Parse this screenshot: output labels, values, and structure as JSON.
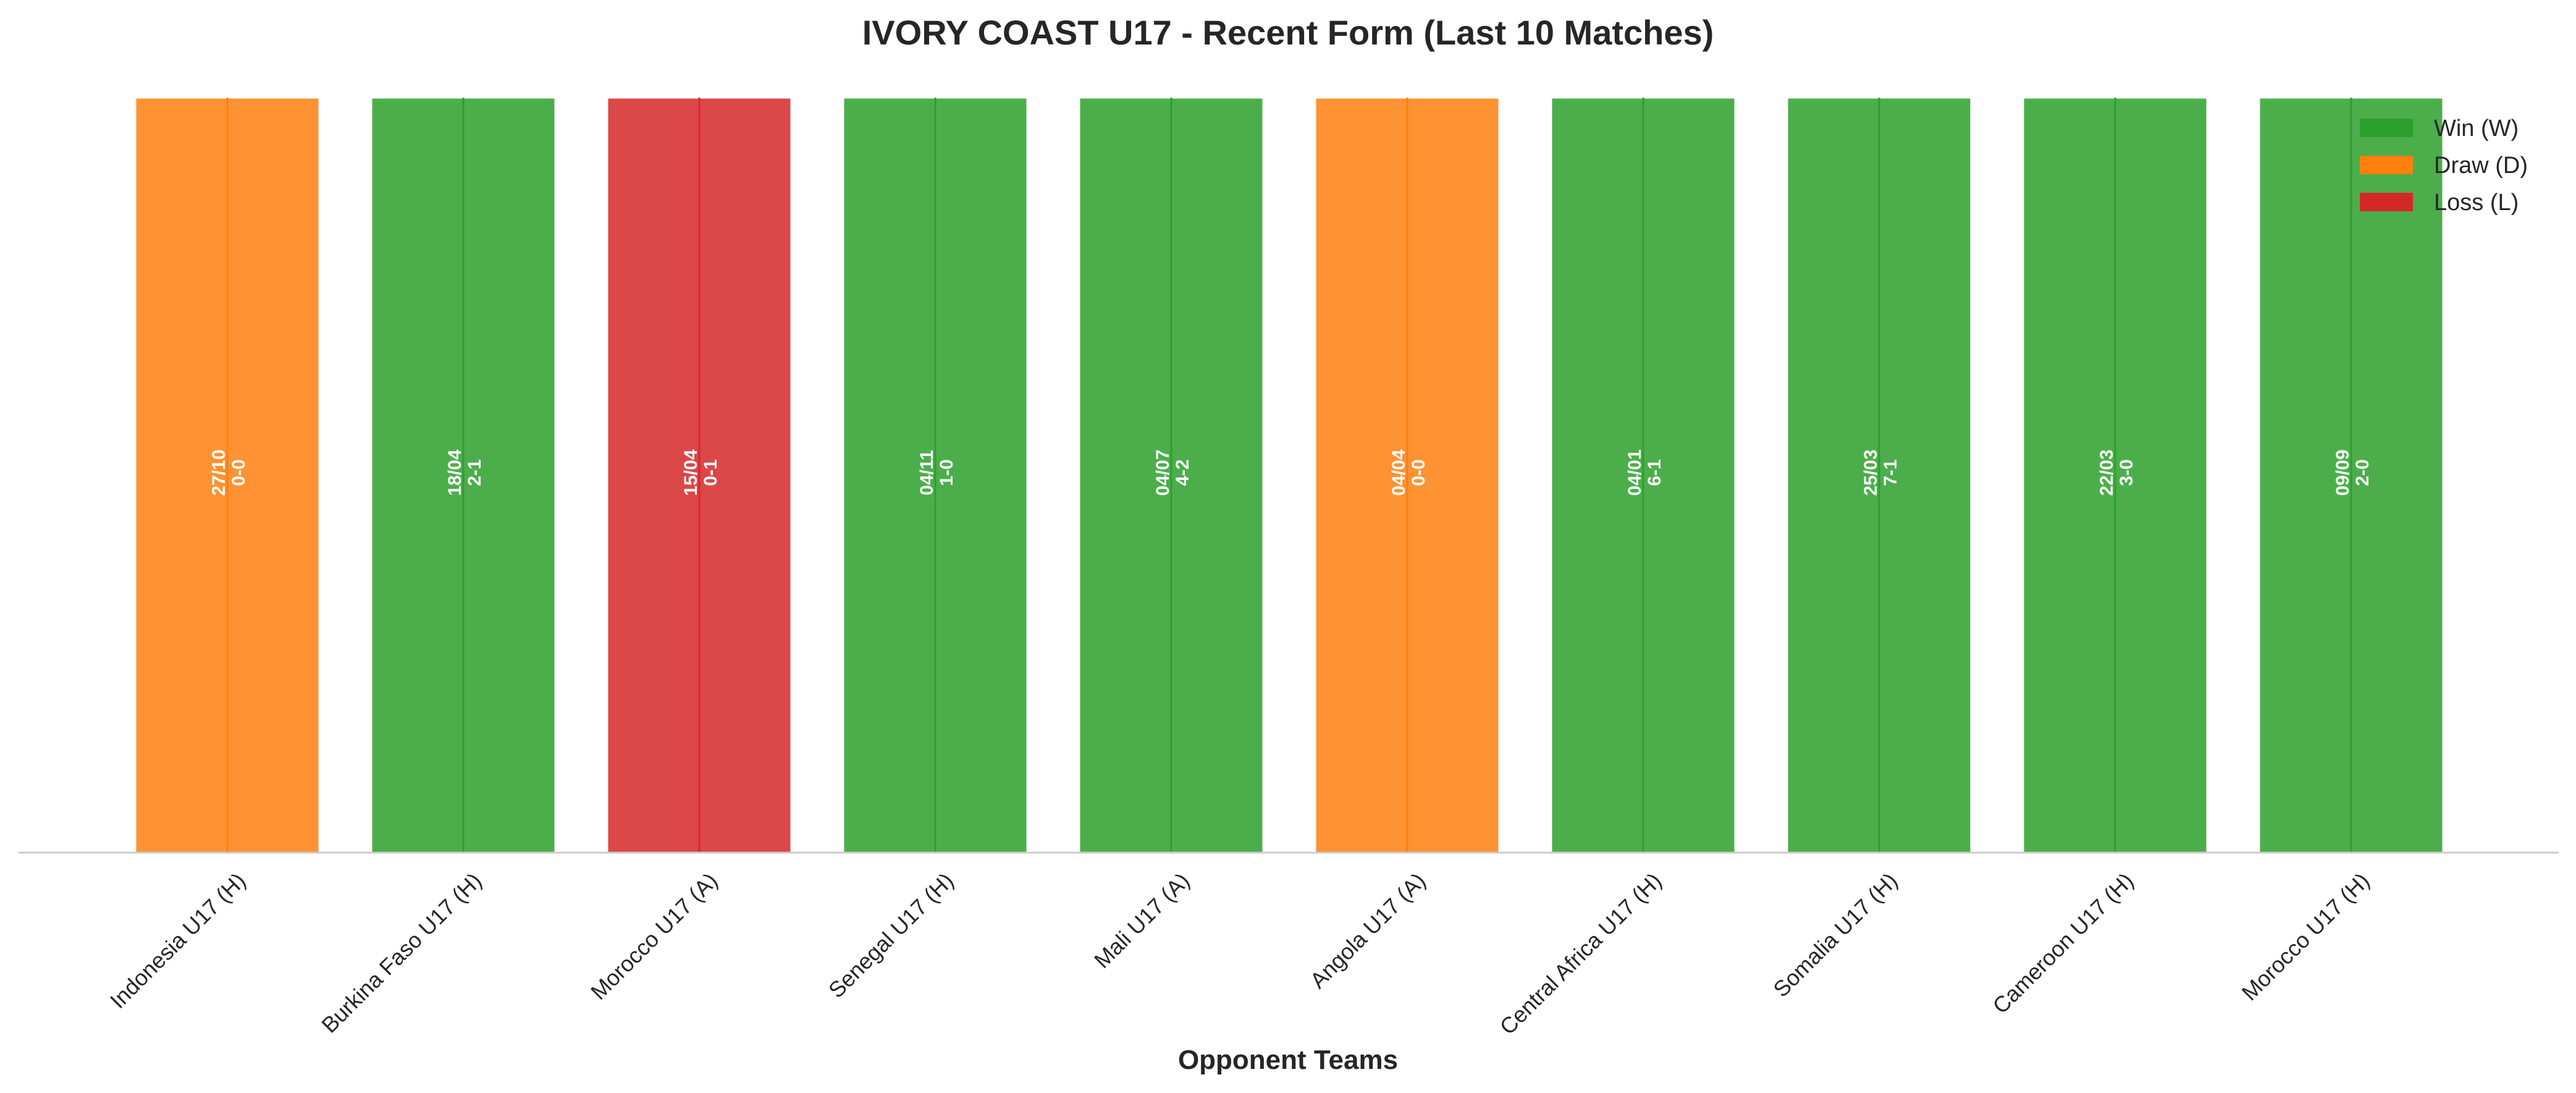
{
  "chart_data": {
    "type": "bar",
    "title": "IVORY COAST U17 - Recent Form (Last 10 Matches)",
    "xlabel": "Opponent Teams",
    "ylabel": "",
    "ylim": [
      0,
      1
    ],
    "grid": false,
    "legend_position": "top-right",
    "categories": [
      "Indonesia U17 (H)",
      "Burkina Faso U17 (H)",
      "Morocco U17 (A)",
      "Senegal U17 (H)",
      "Mali U17 (A)",
      "Angola U17 (A)",
      "Central Africa U17 (H)",
      "Somalia U17 (H)",
      "Cameroon U17 (H)",
      "Morocco U17 (H)"
    ],
    "values": [
      1,
      1,
      1,
      1,
      1,
      1,
      1,
      1,
      1,
      1
    ],
    "results": [
      "D",
      "W",
      "L",
      "W",
      "W",
      "D",
      "W",
      "W",
      "W",
      "W"
    ],
    "dates": [
      "27/10",
      "18/04",
      "15/04",
      "04/11",
      "04/07",
      "04/04",
      "04/01",
      "25/03",
      "22/03",
      "09/09"
    ],
    "scores": [
      "0-0",
      "2-1",
      "0-1",
      "1-0",
      "4-2",
      "0-0",
      "6-1",
      "7-1",
      "3-0",
      "2-0"
    ],
    "legend": [
      {
        "key": "W",
        "label": "Win (W)",
        "color": "#2ca02c"
      },
      {
        "key": "D",
        "label": "Draw (D)",
        "color": "#ff7f0e"
      },
      {
        "key": "L",
        "label": "Loss (L)",
        "color": "#d62728"
      }
    ]
  }
}
